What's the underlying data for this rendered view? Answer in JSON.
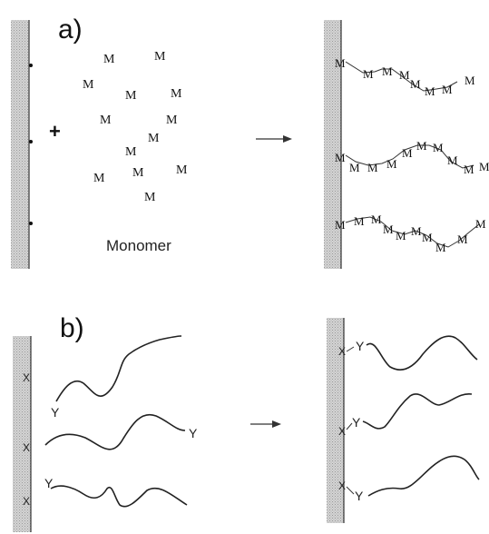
{
  "panel_a": {
    "label": "a)",
    "monomer_symbol": "M",
    "monomer_caption": "Monomer",
    "plus_sign": "+"
  },
  "panel_b": {
    "label": "b)",
    "surface_group": "X",
    "chain_end_group": "Y"
  },
  "colors": {
    "surface_fill": "#c8c8c8",
    "line": "#222222",
    "background": "#ffffff"
  }
}
